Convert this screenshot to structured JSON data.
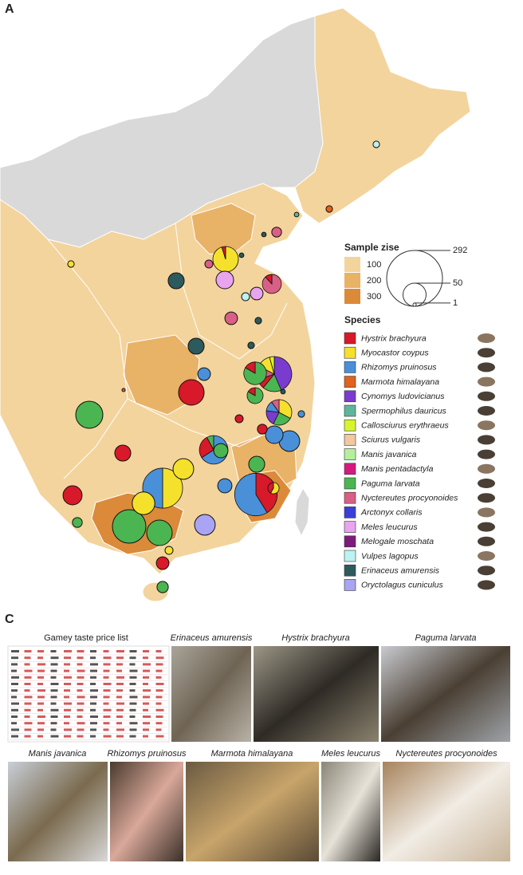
{
  "panel_a": {
    "label": "A",
    "sample_size_legend": {
      "title": "Sample zise",
      "levels": [
        {
          "label": 100,
          "color": "#f3d49d"
        },
        {
          "label": 200,
          "color": "#e8b267"
        },
        {
          "label": 300,
          "color": "#db8a3a"
        }
      ],
      "circles": [
        292,
        50,
        1
      ]
    },
    "species_legend": {
      "title": "Species",
      "species": [
        {
          "name": "Hystrix brachyura",
          "color": "#d7192a"
        },
        {
          "name": "Myocastor coypus",
          "color": "#f5e12b"
        },
        {
          "name": "Rhizomys pruinosus",
          "color": "#4a90d9"
        },
        {
          "name": "Marmota himalayana",
          "color": "#e0621c"
        },
        {
          "name": "Cynomys ludovicianus",
          "color": "#7a3ccf"
        },
        {
          "name": "Spermophilus dauricus",
          "color": "#5fb59b"
        },
        {
          "name": "Callosciurus erythraeus",
          "color": "#d8f52c"
        },
        {
          "name": "Sciurus vulgaris",
          "color": "#f0c9a0"
        },
        {
          "name": "Manis javanica",
          "color": "#b5ef9e"
        },
        {
          "name": "Manis pentadactyla",
          "color": "#d6197f"
        },
        {
          "name": "Paguma larvata",
          "color": "#4bb552"
        },
        {
          "name": "Nyctereutes procyonoides",
          "color": "#d95f86"
        },
        {
          "name": "Arctonyx collaris",
          "color": "#3b3fd9"
        },
        {
          "name": "Meles leucurus",
          "color": "#e9a4ef"
        },
        {
          "name": "Melogale moschata",
          "color": "#7e1b7a"
        },
        {
          "name": "Vulpes lagopus",
          "color": "#bdf2f2"
        },
        {
          "name": "Erinaceus amurensis",
          "color": "#2d5a5c"
        },
        {
          "name": "Oryctolagus cuniculus",
          "color": "#a9a4f3"
        }
      ]
    },
    "sites": [
      {
        "parts": [
          {
            "species": "Vulpes lagopus",
            "count": 4
          }
        ]
      },
      {
        "parts": [
          {
            "species": "Marmota himalayana",
            "count": 4
          }
        ]
      },
      {
        "parts": [
          {
            "species": "Spermophilus dauricus",
            "count": 2
          }
        ]
      },
      {
        "parts": [
          {
            "species": "Nyctereutes procyonoides",
            "count": 9
          }
        ]
      },
      {
        "parts": [
          {
            "species": "Erinaceus amurensis",
            "count": 2
          }
        ]
      },
      {
        "parts": [
          {
            "species": "Myocastor coypus",
            "count": 4
          }
        ]
      },
      {
        "parts": [
          {
            "species": "Myocastor coypus",
            "count": 58
          },
          {
            "species": "Hystrix brachyura",
            "count": 3
          }
        ]
      },
      {
        "parts": [
          {
            "species": "Nyctereutes procyonoides",
            "count": 6
          }
        ]
      },
      {
        "parts": [
          {
            "species": "Erinaceus amurensis",
            "count": 2
          }
        ]
      },
      {
        "parts": [
          {
            "species": "Meles leucurus",
            "count": 29
          }
        ]
      },
      {
        "parts": [
          {
            "species": "Erinaceus amurensis",
            "count": 24
          }
        ]
      },
      {
        "parts": [
          {
            "species": "Nyctereutes procyonoides",
            "count": 30
          },
          {
            "species": "Hystrix brachyura",
            "count": 4
          }
        ]
      },
      {
        "parts": [
          {
            "species": "Meles leucurus",
            "count": 15
          }
        ]
      },
      {
        "parts": [
          {
            "species": "Vulpes lagopus",
            "count": 6
          }
        ]
      },
      {
        "parts": [
          {
            "species": "Nyctereutes procyonoides",
            "count": 15
          }
        ]
      },
      {
        "parts": [
          {
            "species": "Erinaceus amurensis",
            "count": 4
          }
        ]
      },
      {
        "parts": [
          {
            "species": "Erinaceus amurensis",
            "count": 24
          }
        ]
      },
      {
        "parts": [
          {
            "species": "Erinaceus amurensis",
            "count": 4
          }
        ]
      },
      {
        "parts": [
          {
            "species": "Rhizomys pruinosus",
            "count": 15
          }
        ]
      },
      {
        "parts": [
          {
            "species": "Cynomys ludovicianus",
            "count": 50
          },
          {
            "species": "Paguma larvata",
            "count": 20
          },
          {
            "species": "Hystrix brachyura",
            "count": 10
          },
          {
            "species": "Nyctereutes procyonoides",
            "count": 15
          },
          {
            "species": "Myocastor coypus",
            "count": 15
          },
          {
            "species": "Callosciurus erythraeus",
            "count": 5
          }
        ]
      },
      {
        "parts": [
          {
            "species": "Paguma larvata",
            "count": 40
          },
          {
            "species": "Hystrix brachyura",
            "count": 8
          }
        ]
      },
      {
        "parts": [
          {
            "species": "Marmota himalayana",
            "count": 1
          }
        ]
      },
      {
        "parts": [
          {
            "species": "Paguma larvata",
            "count": 20
          },
          {
            "species": "Hystrix brachyura",
            "count": 4
          }
        ]
      },
      {
        "parts": [
          {
            "species": "Hystrix brachyura",
            "count": 61
          }
        ]
      },
      {
        "parts": [
          {
            "species": "Erinaceus amurensis",
            "count": 2
          }
        ]
      },
      {
        "parts": [
          {
            "species": "Myocastor coypus",
            "count": 20
          },
          {
            "species": "Paguma larvata",
            "count": 15
          },
          {
            "species": "Cynomys ludovicianus",
            "count": 12
          },
          {
            "species": "Rhizomys pruinosus",
            "count": 8
          },
          {
            "species": "Nyctereutes procyonoides",
            "count": 6
          }
        ]
      },
      {
        "parts": [
          {
            "species": "Rhizomys pruinosus",
            "count": 4
          }
        ]
      },
      {
        "parts": [
          {
            "species": "Paguma larvata",
            "count": 69
          }
        ]
      },
      {
        "parts": [
          {
            "species": "Hystrix brachyura",
            "count": 6
          }
        ]
      },
      {
        "parts": [
          {
            "species": "Hystrix brachyura",
            "count": 9
          }
        ]
      },
      {
        "parts": [
          {
            "species": "Rhizomys pruinosus",
            "count": 29
          }
        ]
      },
      {
        "parts": [
          {
            "species": "Rhizomys pruinosus",
            "count": 40
          }
        ]
      },
      {
        "parts": [
          {
            "species": "Hystrix brachyura",
            "count": 24
          }
        ]
      },
      {
        "parts": [
          {
            "species": "Paguma larvata",
            "count": 19
          }
        ]
      },
      {
        "parts": [
          {
            "species": "Rhizomys pruinosus",
            "count": 50
          },
          {
            "species": "Hystrix brachyura",
            "count": 20
          },
          {
            "species": "Paguma larvata",
            "count": 6
          }
        ]
      },
      {
        "parts": [
          {
            "species": "Myocastor coypus",
            "count": 40
          }
        ]
      },
      {
        "parts": [
          {
            "species": "Paguma larvata",
            "count": 24
          }
        ]
      },
      {
        "parts": [
          {
            "species": "Myocastor coypus",
            "count": 75
          },
          {
            "species": "Rhizomys pruinosus",
            "count": 75
          }
        ]
      },
      {
        "parts": [
          {
            "species": "Rhizomys pruinosus",
            "count": 19
          }
        ]
      },
      {
        "parts": [
          {
            "species": "Myocastor coypus",
            "count": 7
          },
          {
            "species": "Hystrix brachyura",
            "count": 5
          }
        ]
      },
      {
        "parts": [
          {
            "species": "Hystrix brachyura",
            "count": 70
          },
          {
            "species": "Rhizomys pruinosus",
            "count": 100
          }
        ]
      },
      {
        "parts": [
          {
            "species": "Hystrix brachyura",
            "count": 34
          }
        ]
      },
      {
        "parts": [
          {
            "species": "Myocastor coypus",
            "count": 48
          }
        ]
      },
      {
        "parts": [
          {
            "species": "Oryctolagus cuniculus",
            "count": 40
          }
        ]
      },
      {
        "parts": [
          {
            "species": "Paguma larvata",
            "count": 9
          }
        ]
      },
      {
        "parts": [
          {
            "species": "Paguma larvata",
            "count": 105
          }
        ]
      },
      {
        "parts": [
          {
            "species": "Paguma larvata",
            "count": 61
          }
        ]
      },
      {
        "parts": [
          {
            "species": "Myocastor coypus",
            "count": 6
          }
        ]
      },
      {
        "parts": [
          {
            "species": "Hystrix brachyura",
            "count": 15
          }
        ]
      },
      {
        "parts": [
          {
            "species": "Paguma larvata",
            "count": 12
          }
        ]
      }
    ]
  },
  "panel_c": {
    "label": "C",
    "price_list": {
      "title": "Gamey taste price list"
    },
    "photos": [
      {
        "caption": "Erinaceus amurensis"
      },
      {
        "caption": "Hystrix brachyura"
      },
      {
        "caption": "Paguma larvata"
      },
      {
        "caption": "Manis javanica"
      },
      {
        "caption": "Rhizomys pruinosus"
      },
      {
        "caption": "Marmota himalayana"
      },
      {
        "caption": "Meles leucurus"
      },
      {
        "caption": "Nyctereutes procyonoides"
      }
    ]
  }
}
